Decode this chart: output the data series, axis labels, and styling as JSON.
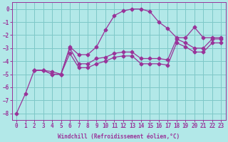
{
  "xlabel": "Windchill (Refroidissement éolien,°C)",
  "background_color": "#b2e8e8",
  "grid_color": "#7ec8c8",
  "line_color": "#993399",
  "xlim": [
    -0.5,
    23.5
  ],
  "ylim": [
    -8.5,
    0.5
  ],
  "xticks": [
    0,
    1,
    2,
    3,
    4,
    5,
    6,
    7,
    8,
    9,
    10,
    11,
    12,
    13,
    14,
    15,
    16,
    17,
    18,
    19,
    20,
    21,
    22,
    23
  ],
  "yticks": [
    0,
    -1,
    -2,
    -3,
    -4,
    -5,
    -6,
    -7,
    -8
  ],
  "curve_x": [
    0,
    1,
    2,
    3,
    4,
    5,
    6,
    7,
    8,
    9,
    10,
    11,
    12,
    13,
    14,
    15,
    16,
    17,
    18,
    19,
    20,
    21,
    22,
    23
  ],
  "curve_y": [
    -8.0,
    -6.5,
    -4.7,
    -4.7,
    -4.8,
    -5.0,
    -2.9,
    -3.5,
    -3.5,
    -2.9,
    -1.6,
    -0.5,
    -0.15,
    0.0,
    0.0,
    -0.2,
    -1.0,
    -1.5,
    -2.2,
    -2.2,
    -1.4,
    -2.2,
    -2.2,
    -2.2
  ],
  "line2_x": [
    2,
    3,
    4,
    5,
    6,
    7,
    8,
    9,
    10,
    11,
    12,
    13,
    14,
    15,
    16,
    17,
    18,
    19,
    20,
    21,
    22,
    23
  ],
  "line2_y": [
    -4.7,
    -4.7,
    -5.0,
    -5.0,
    -3.0,
    -4.2,
    -4.2,
    -3.8,
    -3.7,
    -3.4,
    -3.3,
    -3.3,
    -3.8,
    -3.8,
    -3.8,
    -3.9,
    -2.3,
    -2.6,
    -3.0,
    -3.0,
    -2.3,
    -2.3
  ],
  "line3_x": [
    2,
    3,
    4,
    5,
    6,
    7,
    8,
    9,
    10,
    11,
    12,
    13,
    14,
    15,
    16,
    17,
    18,
    19,
    20,
    21,
    22,
    23
  ],
  "line3_y": [
    -4.7,
    -4.7,
    -5.0,
    -5.0,
    -3.4,
    -4.5,
    -4.5,
    -4.2,
    -4.0,
    -3.7,
    -3.6,
    -3.6,
    -4.2,
    -4.2,
    -4.2,
    -4.3,
    -2.6,
    -2.9,
    -3.3,
    -3.3,
    -2.6,
    -2.6
  ],
  "marker_style": "D",
  "marker_size": 2.5,
  "linewidth": 0.9,
  "xlabel_fontsize": 5.5,
  "tick_fontsize": 5.5
}
